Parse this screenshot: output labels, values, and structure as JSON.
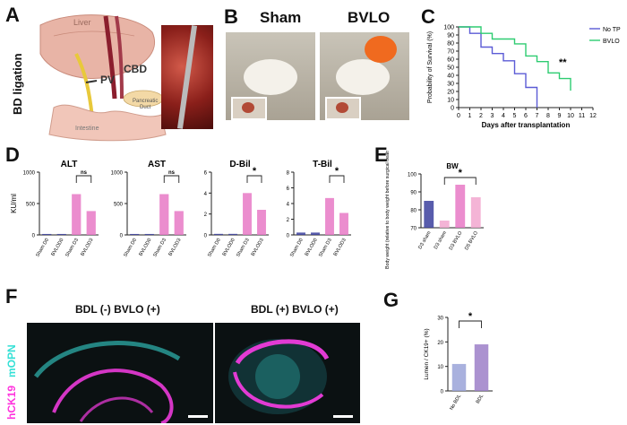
{
  "panels": {
    "A": {
      "letter": "A",
      "label": "BD ligation",
      "liver": "Liver",
      "pv": "PV",
      "cbd": "CBD",
      "pancreatic": "Pancreatic",
      "duct": "Duct",
      "intestine": "Intestine"
    },
    "B": {
      "letter": "B",
      "sham": "Sham",
      "bvlo": "BVLO"
    },
    "C": {
      "letter": "C"
    },
    "D": {
      "letter": "D"
    },
    "E": {
      "letter": "E"
    },
    "F": {
      "letter": "F",
      "title_left": "BDL (-) BVLO (+)",
      "title_right": "BDL (+) BVLO (+)",
      "stain1": "hCK19",
      "stain2": "mOPN"
    },
    "G": {
      "letter": "G"
    }
  },
  "chart_data": [
    {
      "id": "C",
      "type": "line",
      "xlabel": "Days after transplantation",
      "ylabel": "Probability of Survival (%)",
      "xlim": [
        0,
        12
      ],
      "ylim": [
        0,
        100
      ],
      "xticks": [
        0,
        1,
        2,
        3,
        4,
        5,
        6,
        7,
        8,
        9,
        10,
        11,
        12
      ],
      "yticks": [
        0,
        10,
        20,
        30,
        40,
        50,
        60,
        70,
        80,
        90,
        100
      ],
      "annotation": "**",
      "series": [
        {
          "name": "No TP",
          "color": "#5b5bd6",
          "steps": [
            [
              0,
              100
            ],
            [
              1,
              92
            ],
            [
              2,
              75
            ],
            [
              3,
              67
            ],
            [
              4,
              58
            ],
            [
              5,
              42
            ],
            [
              6,
              25
            ],
            [
              7,
              0
            ]
          ]
        },
        {
          "name": "BVLO",
          "color": "#2ecc71",
          "steps": [
            [
              0,
              100
            ],
            [
              2,
              92
            ],
            [
              3,
              85
            ],
            [
              5,
              79
            ],
            [
              6,
              64
            ],
            [
              7,
              57
            ],
            [
              8,
              43
            ],
            [
              9,
              36
            ],
            [
              10,
              21
            ]
          ]
        }
      ]
    },
    {
      "id": "D1",
      "type": "bar",
      "title": "ALT",
      "ylabel": "KU/ml",
      "categories": [
        "Sham D0",
        "BVLOD0",
        "Sham D3",
        "BVLOD3"
      ],
      "values": [
        15,
        15,
        650,
        380
      ],
      "ylim": [
        0,
        1000
      ],
      "yticks": [
        0,
        500,
        1000
      ],
      "sig": "ns",
      "sig_pair": [
        2,
        3
      ]
    },
    {
      "id": "D2",
      "type": "bar",
      "title": "AST",
      "categories": [
        "Sham D0",
        "BVLOD0",
        "Sham D3",
        "BVLOD3"
      ],
      "values": [
        15,
        15,
        650,
        380
      ],
      "ylim": [
        0,
        1000
      ],
      "yticks": [
        0,
        500,
        1000
      ],
      "sig": "ns",
      "sig_pair": [
        2,
        3
      ]
    },
    {
      "id": "D3",
      "type": "bar",
      "title": "D-Bil",
      "categories": [
        "Sham D0",
        "BVLOD0",
        "Sham D3",
        "BVLOD3"
      ],
      "values": [
        0.1,
        0.1,
        4.0,
        2.4
      ],
      "ylim": [
        0,
        6
      ],
      "yticks": [
        0,
        2,
        4,
        6
      ],
      "sig": "*",
      "sig_pair": [
        2,
        3
      ]
    },
    {
      "id": "D4",
      "type": "bar",
      "title": "T-Bil",
      "categories": [
        "Sham D0",
        "BVLOD0",
        "Sham D3",
        "BVLOD3"
      ],
      "values": [
        0.3,
        0.3,
        4.7,
        2.8
      ],
      "ylim": [
        0,
        8
      ],
      "yticks": [
        0,
        2,
        4,
        6,
        8
      ],
      "sig": "*",
      "sig_pair": [
        2,
        3
      ]
    },
    {
      "id": "E",
      "type": "bar",
      "title": "BW",
      "ylabel": "Body weight (relative to body weight before surgical treatment)(%)",
      "categories": [
        "D3 sham",
        "D3 sham",
        "D3 BVLO",
        "D5 BVLO"
      ],
      "values": [
        85,
        74,
        94,
        87
      ],
      "ylim": [
        70,
        100
      ],
      "yticks": [
        70,
        80,
        90,
        100
      ],
      "sig": "*",
      "sig_pair": [
        1,
        3
      ]
    },
    {
      "id": "G",
      "type": "bar",
      "ylabel": "Lumen / CK19+ (%)",
      "categories": [
        "No BDL",
        "BDL"
      ],
      "values": [
        11,
        19
      ],
      "ylim": [
        0,
        30
      ],
      "yticks": [
        0,
        10,
        20,
        30
      ],
      "sig": "*",
      "sig_pair": [
        0,
        1
      ]
    }
  ],
  "colors": {
    "navy": "#3b3f9e",
    "pink": "#e879c6",
    "lightpink": "#f2a7cf",
    "blue_bar": "#9aa3d8",
    "purple_bar": "#9c7fc8"
  }
}
